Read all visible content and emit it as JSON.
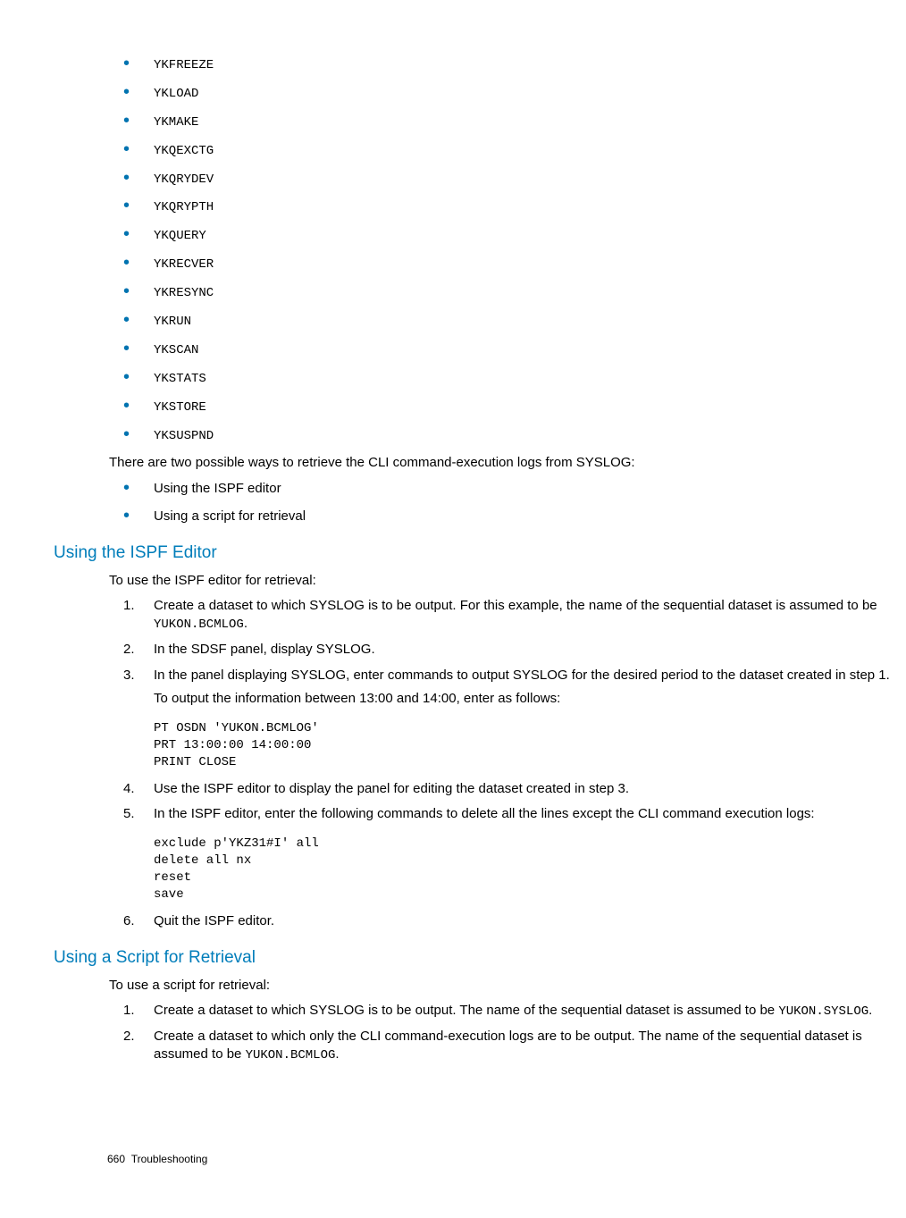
{
  "commands": [
    "YKFREEZE",
    "YKLOAD",
    "YKMAKE",
    "YKQEXCTG",
    "YKQRYDEV",
    "YKQRYPTH",
    "YKQUERY",
    "YKRECVER",
    "YKRESYNC",
    "YKRUN",
    "YKSCAN",
    "YKSTATS",
    "YKSTORE",
    "YKSUSPND"
  ],
  "intro_para": "There are two possible ways to retrieve the CLI command-execution logs from SYSLOG:",
  "intro_bullets": [
    "Using the ISPF editor",
    "Using a script for retrieval"
  ],
  "ispf": {
    "heading": "Using the ISPF Editor",
    "lead": "To use the ISPF editor for retrieval:",
    "steps": {
      "s1a": "Create a dataset to which SYSLOG is to be output. For this example, the name of the sequential dataset is assumed to be ",
      "s1code": "YUKON.BCMLOG",
      "s1b": ".",
      "s2": "In the SDSF panel, display SYSLOG.",
      "s3": "In the panel displaying SYSLOG, enter commands to output SYSLOG for the desired period to the dataset created in step 1.",
      "s3_sub": "To output the information between 13:00 and 14:00, enter as follows:",
      "s3_code": "PT OSDN 'YUKON.BCMLOG'\nPRT 13:00:00 14:00:00\nPRINT CLOSE",
      "s4": "Use the ISPF editor to display the panel for editing the dataset created in step 3.",
      "s5": "In the ISPF editor, enter the following commands to delete all the lines except the CLI command execution logs:",
      "s5_code": "exclude p'YKZ31#I' all\ndelete all nx\nreset\nsave",
      "s6": "Quit the ISPF editor."
    }
  },
  "script": {
    "heading": "Using a Script for Retrieval",
    "lead": "To use a script for retrieval:",
    "steps": {
      "s1a": "Create a dataset to which SYSLOG is to be output. The name of the sequential dataset is assumed to be ",
      "s1code": "YUKON.SYSLOG",
      "s1b": ".",
      "s2a": "Create a dataset to which only the CLI command-execution logs are to be output. The name of the sequential dataset is assumed to be ",
      "s2code": "YUKON.BCMLOG",
      "s2b": "."
    }
  },
  "footer": {
    "page": "660",
    "section": "Troubleshooting"
  },
  "nums": {
    "n1": "1.",
    "n2": "2.",
    "n3": "3.",
    "n4": "4.",
    "n5": "5.",
    "n6": "6."
  },
  "colors": {
    "accent": "#007dba",
    "bullet": "#0073b0"
  }
}
